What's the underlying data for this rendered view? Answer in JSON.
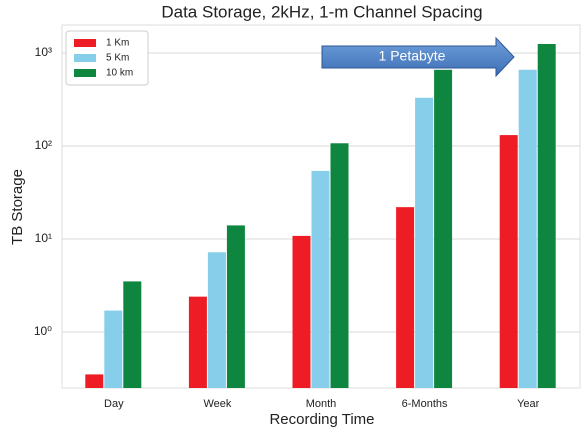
{
  "chart_data": {
    "type": "bar",
    "title": "Data Storage, 2kHz, 1-m Channel Spacing",
    "x_label": "Recording Time",
    "y_label": "TB Storage",
    "categories": [
      "Day",
      "Week",
      "Month",
      "6-Months",
      "Year"
    ],
    "series": [
      {
        "name": "1 Km",
        "color": "#ee1c25",
        "values": [
          0.35,
          2.4,
          10.8,
          22,
          131
        ]
      },
      {
        "name": "5 Km",
        "color": "#87ceeb",
        "values": [
          1.7,
          7.2,
          54,
          330,
          660
        ]
      },
      {
        "name": "10 km",
        "color": "#0f8640",
        "values": [
          3.5,
          14,
          107,
          660,
          1250
        ]
      }
    ],
    "log_scale": true,
    "ylim": [
      0.25,
      2000
    ],
    "yticks": [
      {
        "value": 1,
        "label": "10⁰"
      },
      {
        "value": 10,
        "label": "10¹"
      },
      {
        "value": 100,
        "label": "10²"
      },
      {
        "value": 1000,
        "label": "10³"
      }
    ],
    "grid": true,
    "legend": "upper-left",
    "annotation": "1 Petabyte"
  }
}
